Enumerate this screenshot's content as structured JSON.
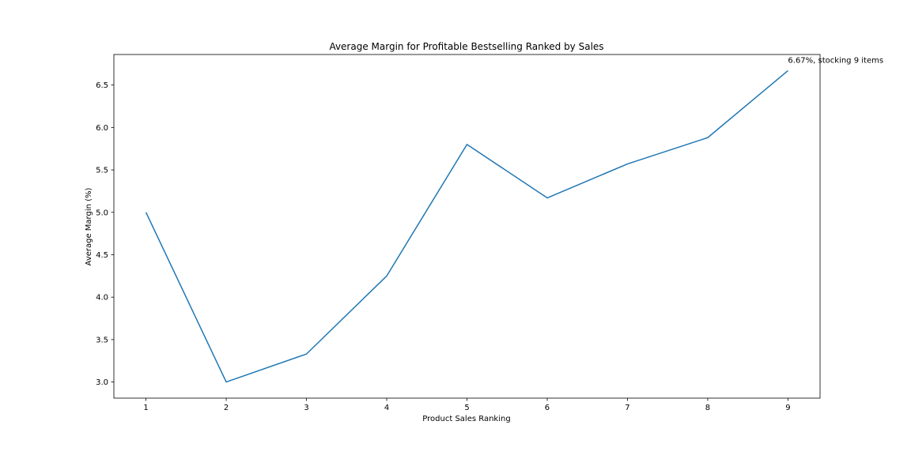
{
  "chart_data": {
    "type": "line",
    "title": "Average Margin for Profitable Bestselling Ranked by Sales",
    "xlabel": "Product Sales Ranking",
    "ylabel": "Average Margin (%)",
    "x": [
      1,
      2,
      3,
      4,
      5,
      6,
      7,
      8,
      9
    ],
    "series": [
      {
        "values": [
          5.0,
          3.0,
          3.33,
          4.25,
          5.8,
          5.17,
          5.57,
          5.88,
          6.67
        ],
        "color": "#1f77b4"
      }
    ],
    "xlim": [
      0.6,
      9.4
    ],
    "ylim": [
      2.81,
      6.86
    ],
    "xticks": [
      "1",
      "2",
      "3",
      "4",
      "5",
      "6",
      "7",
      "8",
      "9"
    ],
    "yticks": [
      "3.0",
      "3.5",
      "4.0",
      "4.5",
      "5.0",
      "5.5",
      "6.0",
      "6.5"
    ],
    "annotations": [
      {
        "text": "6.67%, stocking 9 items",
        "x": 9,
        "y": 6.67
      }
    ],
    "grid": false,
    "legend": "none"
  }
}
